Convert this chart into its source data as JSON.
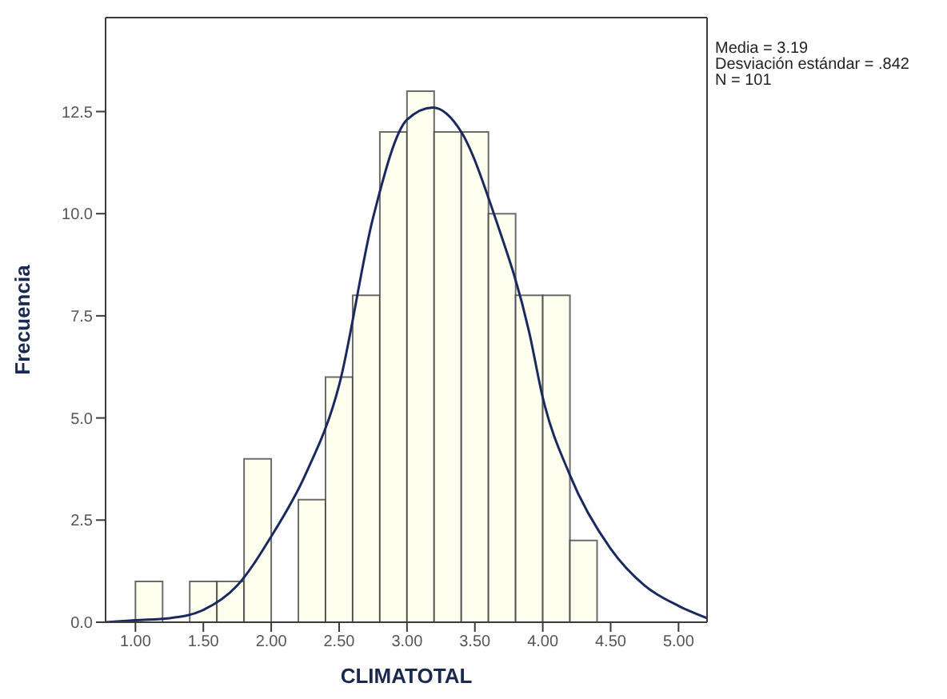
{
  "chart_data": {
    "type": "histogram",
    "xlabel": "CLIMATOTAL",
    "ylabel": "Frecuencia",
    "annotations": [
      "Media = 3.19",
      "Desviación estándar = .842",
      "N = 101"
    ],
    "bins": [
      1.0,
      1.2,
      1.4,
      1.6,
      1.8,
      2.0,
      2.2,
      2.4,
      2.6,
      2.8,
      3.0,
      3.2,
      3.4,
      3.6,
      3.8,
      4.0,
      4.2,
      4.4
    ],
    "values": [
      1,
      0,
      1,
      1,
      4,
      0,
      3,
      6,
      8,
      12,
      13,
      12,
      12,
      10,
      8,
      8,
      2
    ],
    "color": "#fffff0",
    "series": [
      {
        "type": "line",
        "color": "#1a2a5e",
        "x": [
          0.78,
          1.0,
          1.25,
          1.5,
          1.75,
          2.0,
          2.25,
          2.5,
          2.75,
          3.0,
          3.19,
          3.4,
          3.65,
          3.9,
          4.0,
          4.2,
          4.5,
          4.75,
          5.0,
          5.21
        ],
        "values": [
          0.0,
          0.05,
          0.1,
          0.3,
          0.9,
          2.1,
          3.6,
          5.8,
          9.9,
          12.3,
          12.6,
          12.0,
          9.9,
          7.1,
          5.5,
          3.6,
          1.8,
          0.9,
          0.4,
          0.1
        ]
      }
    ],
    "xlim": [
      0.78,
      5.21
    ],
    "xticks": [
      {
        "value": 1,
        "label": "1.00"
      },
      {
        "value": 1.5,
        "label": "1.50"
      },
      {
        "value": 2,
        "label": "2.00"
      },
      {
        "value": 2.5,
        "label": "2.50"
      },
      {
        "value": 3,
        "label": "3.00"
      },
      {
        "value": 3.5,
        "label": "3.50"
      },
      {
        "value": 4,
        "label": "4.00"
      },
      {
        "value": 4.5,
        "label": "4.50"
      },
      {
        "value": 5,
        "label": "5.00"
      }
    ],
    "ylim": [
      0,
      14.8
    ],
    "yticks": [
      {
        "value": 0,
        "label": "0.0"
      },
      {
        "value": 2.5,
        "label": "2.5"
      },
      {
        "value": 5,
        "label": "5.0"
      },
      {
        "value": 7.5,
        "label": "7.5"
      },
      {
        "value": 10,
        "label": "10.0"
      },
      {
        "value": 12.5,
        "label": "12.5"
      }
    ]
  }
}
